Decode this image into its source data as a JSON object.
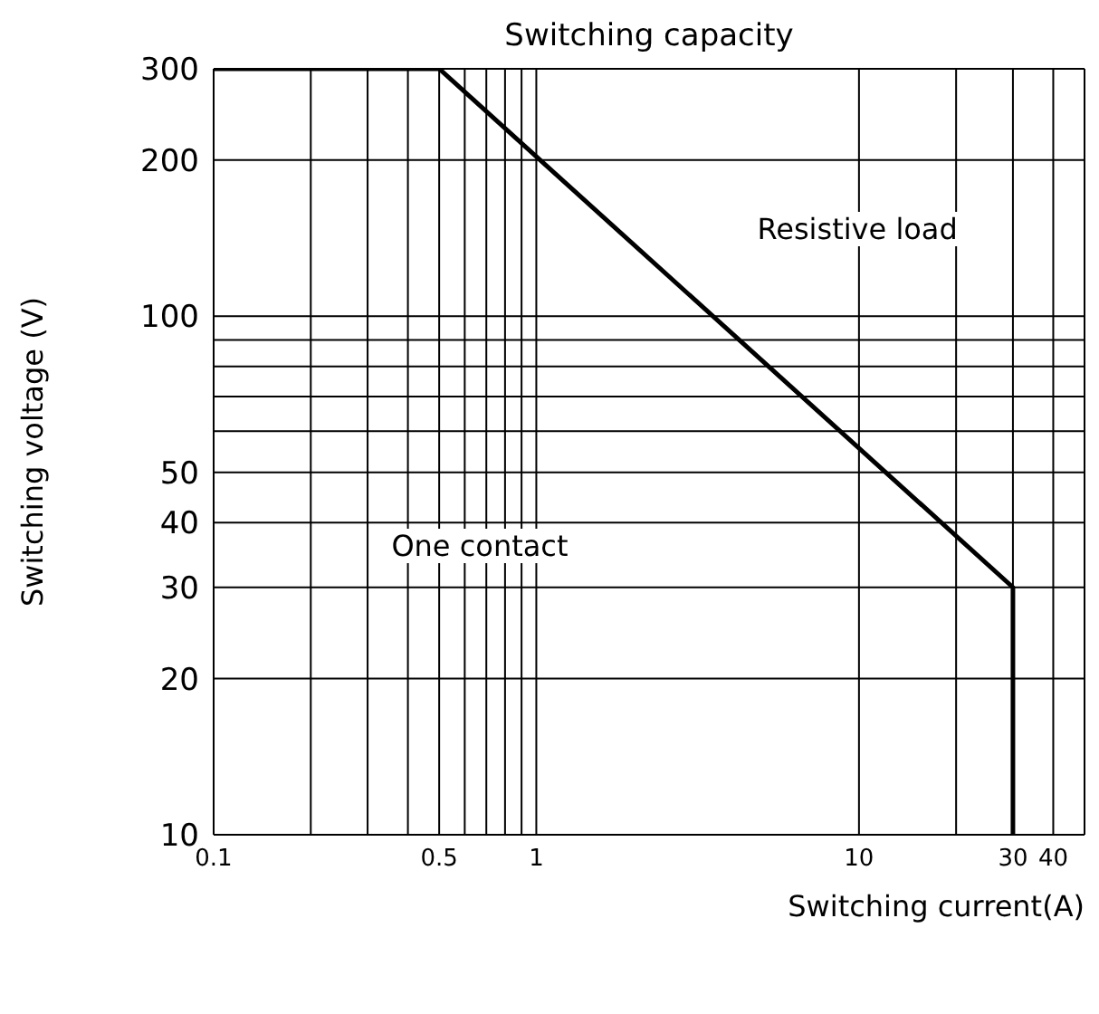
{
  "chart_data": {
    "type": "line",
    "title": "Switching capacity",
    "xlabel": "Switching current(A)",
    "ylabel": "Switching voltage (V)",
    "annotations": [
      "Resistive load",
      "One contact"
    ],
    "x": [
      0.1,
      0.5,
      30,
      30
    ],
    "series": [
      {
        "color": "#000000",
        "values": [
          300,
          300,
          30,
          10
        ]
      }
    ],
    "log": "xy",
    "xlim": [
      0.1,
      50
    ],
    "ylim": [
      10,
      300
    ],
    "xticks": [
      0.1,
      {
        "value": 0.2,
        "label": null
      },
      {
        "value": 0.3,
        "label": null
      },
      {
        "value": 0.4,
        "label": null
      },
      0.5,
      {
        "value": 0.6,
        "label": null
      },
      {
        "value": 0.7,
        "label": null
      },
      {
        "value": 0.8,
        "label": null
      },
      {
        "value": 0.9,
        "label": null
      },
      1,
      10,
      {
        "value": 20,
        "label": null
      },
      30,
      40
    ],
    "yticks": [
      10,
      20,
      30,
      40,
      50,
      {
        "value": 60,
        "label": null
      },
      {
        "value": 70,
        "label": null
      },
      {
        "value": 80,
        "label": null
      },
      {
        "value": 90,
        "label": null
      },
      100,
      200,
      300
    ],
    "grid": true,
    "marker": "none",
    "line_style": "solid"
  }
}
